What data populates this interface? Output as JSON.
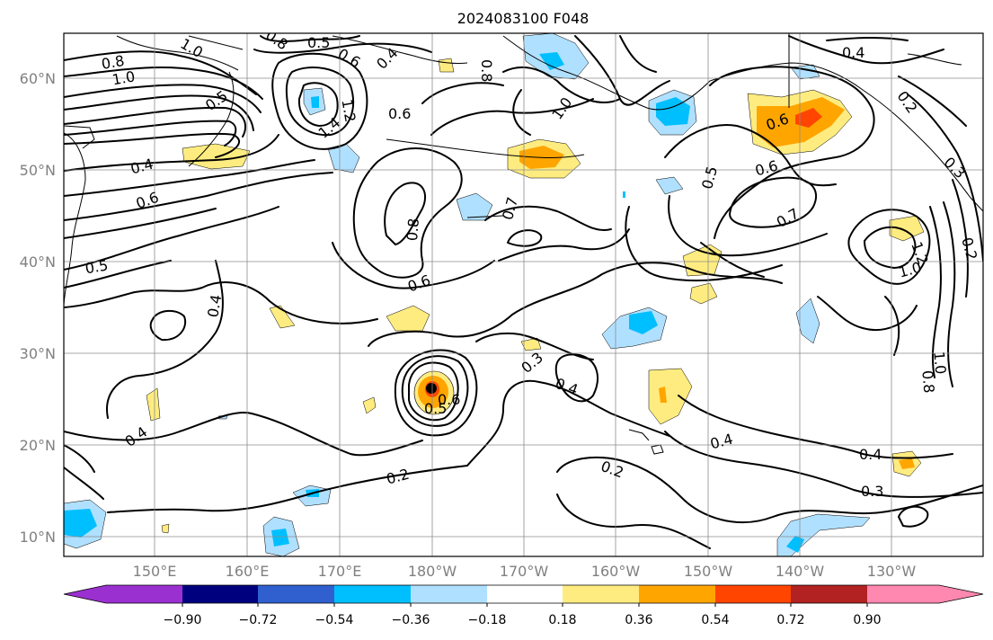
{
  "title": "2024083100 F048",
  "lat_labels": [
    "60°N",
    "50°N",
    "40°N",
    "30°N",
    "20°N",
    "10°N"
  ],
  "lon_labels": [
    "150°E",
    "160°E",
    "170°E",
    "180°W",
    "170°W",
    "160°W",
    "150°W",
    "140°W",
    "130°W"
  ],
  "colorbar": {
    "ticks": [
      "−0.90",
      "−0.72",
      "−0.54",
      "−0.36",
      "−0.18",
      "0.18",
      "0.36",
      "0.54",
      "0.72",
      "0.90"
    ],
    "colors": [
      "#9b30d0",
      "#00007f",
      "#3060d0",
      "#00bfff",
      "#b0e0ff",
      "#ffffff",
      "#ffec80",
      "#ffa500",
      "#ff4500",
      "#b22222",
      "#ff88b0"
    ]
  },
  "contour_labels": [
    {
      "id": "c1",
      "text": "1.0"
    },
    {
      "id": "c2",
      "text": "0.8"
    },
    {
      "id": "c3",
      "text": "1.0"
    },
    {
      "id": "c4",
      "text": "0.5"
    },
    {
      "id": "c5",
      "text": "0.8"
    },
    {
      "id": "c6",
      "text": "0.6"
    },
    {
      "id": "c7",
      "text": "0.4"
    },
    {
      "id": "c8",
      "text": "0.6"
    },
    {
      "id": "c9",
      "text": "0.5"
    },
    {
      "id": "c10",
      "text": "1.4"
    },
    {
      "id": "c11",
      "text": "1.2"
    },
    {
      "id": "c12",
      "text": "0.6"
    },
    {
      "id": "c13",
      "text": "0.8"
    },
    {
      "id": "c14",
      "text": "1.0"
    },
    {
      "id": "c15",
      "text": "0.8"
    },
    {
      "id": "c16",
      "text": "0.7"
    },
    {
      "id": "c17",
      "text": "0.6"
    },
    {
      "id": "c18",
      "text": "0.4"
    },
    {
      "id": "c19",
      "text": "0.5"
    },
    {
      "id": "c20",
      "text": "0.6"
    },
    {
      "id": "c21",
      "text": "0.7"
    },
    {
      "id": "c22",
      "text": "0.6"
    },
    {
      "id": "c23",
      "text": "0.4"
    },
    {
      "id": "c24",
      "text": "0.3"
    },
    {
      "id": "c25",
      "text": "0.4"
    },
    {
      "id": "c26",
      "text": "0.5"
    },
    {
      "id": "c27",
      "text": "0.6"
    },
    {
      "id": "c28",
      "text": "0.4"
    },
    {
      "id": "c29",
      "text": "0.2"
    },
    {
      "id": "c30",
      "text": "0.2"
    },
    {
      "id": "c31",
      "text": "0.4"
    },
    {
      "id": "c32",
      "text": "0.4"
    },
    {
      "id": "c33",
      "text": "0.3"
    },
    {
      "id": "c34",
      "text": "1.0"
    },
    {
      "id": "c35",
      "text": "1.0"
    },
    {
      "id": "c36",
      "text": "0.8"
    },
    {
      "id": "c37",
      "text": "0.5"
    },
    {
      "id": "c38",
      "text": "0.4"
    },
    {
      "id": "c39",
      "text": "0.2"
    },
    {
      "id": "c40",
      "text": "0.2"
    },
    {
      "id": "c41",
      "text": "0.3"
    },
    {
      "id": "c42",
      "text": "1.2"
    }
  ]
}
